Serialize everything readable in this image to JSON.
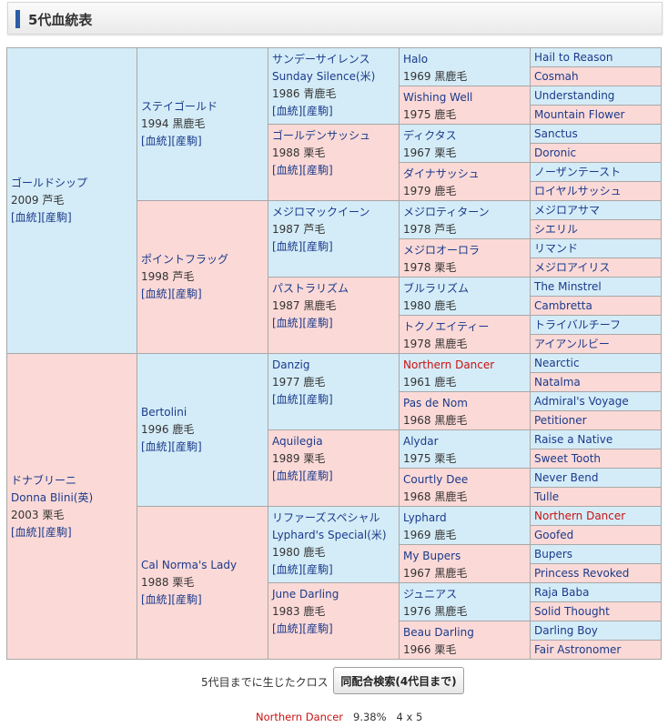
{
  "header": {
    "title": "5代血統表"
  },
  "pedigree": {
    "g1": [
      {
        "name": "ゴールドシップ",
        "info": "2009 芦毛",
        "links": "[血統][産駒]"
      },
      {
        "name": "ドナブリーニ",
        "name2": "Donna Blini(英)",
        "info": "2003 栗毛",
        "links": "[血統][産駒]"
      }
    ],
    "g2": [
      {
        "name": "ステイゴールド",
        "info": "1994 黒鹿毛",
        "links": "[血統][産駒]"
      },
      {
        "name": "ポイントフラッグ",
        "info": "1998 芦毛",
        "links": "[血統][産駒]"
      },
      {
        "name": "Bertolini",
        "info": "1996 鹿毛",
        "links": "[血統][産駒]"
      },
      {
        "name": "Cal Norma's Lady",
        "info": "1988 栗毛",
        "links": "[血統][産駒]"
      }
    ],
    "g3": [
      {
        "name": "サンデーサイレンス",
        "name2": "Sunday Silence(米)",
        "info": "1986 青鹿毛",
        "links": "[血統][産駒]"
      },
      {
        "name": "ゴールデンサッシュ",
        "info": "1988 栗毛",
        "links": "[血統][産駒]"
      },
      {
        "name": "メジロマックイーン",
        "info": "1987 芦毛",
        "links": "[血統][産駒]"
      },
      {
        "name": "パストラリズム",
        "info": "1987 黒鹿毛",
        "links": "[血統][産駒]"
      },
      {
        "name": "Danzig",
        "info": "1977 鹿毛",
        "links": "[血統][産駒]"
      },
      {
        "name": "Aquilegia",
        "info": "1989 栗毛",
        "links": "[血統][産駒]"
      },
      {
        "name": "リファーズスペシャル",
        "name2": "Lyphard's Special(米)",
        "info": "1980 鹿毛",
        "links": "[血統][産駒]"
      },
      {
        "name": "June Darling",
        "info": "1983 鹿毛",
        "links": "[血統][産駒]"
      }
    ],
    "g4": [
      {
        "name": "Halo",
        "info": "1969 黒鹿毛"
      },
      {
        "name": "Wishing Well",
        "info": "1975 鹿毛"
      },
      {
        "name": "ディクタス",
        "info": "1967 栗毛"
      },
      {
        "name": "ダイナサッシュ",
        "info": "1979 鹿毛"
      },
      {
        "name": "メジロティターン",
        "info": "1978 芦毛"
      },
      {
        "name": "メジロオーロラ",
        "info": "1978 栗毛"
      },
      {
        "name": "ブルラリズム",
        "info": "1980 鹿毛"
      },
      {
        "name": "トクノエイティー",
        "info": "1978 黒鹿毛"
      },
      {
        "name": "Northern Dancer",
        "info": "1961 鹿毛",
        "highlight": true
      },
      {
        "name": "Pas de Nom",
        "info": "1968 黒鹿毛"
      },
      {
        "name": "Alydar",
        "info": "1975 栗毛"
      },
      {
        "name": "Courtly Dee",
        "info": "1968 黒鹿毛"
      },
      {
        "name": "Lyphard",
        "info": "1969 鹿毛"
      },
      {
        "name": "My Bupers",
        "info": "1967 黒鹿毛"
      },
      {
        "name": "ジュニアス",
        "info": "1976 黒鹿毛"
      },
      {
        "name": "Beau Darling",
        "info": "1966 栗毛"
      }
    ],
    "g5": [
      {
        "name": "Hail to Reason"
      },
      {
        "name": "Cosmah"
      },
      {
        "name": "Understanding"
      },
      {
        "name": "Mountain Flower"
      },
      {
        "name": "Sanctus"
      },
      {
        "name": "Doronic"
      },
      {
        "name": "ノーザンテースト"
      },
      {
        "name": "ロイヤルサッシュ"
      },
      {
        "name": "メジロアサマ"
      },
      {
        "name": "シエリル"
      },
      {
        "name": "リマンド"
      },
      {
        "name": "メジロアイリス"
      },
      {
        "name": "The Minstrel"
      },
      {
        "name": "Cambretta"
      },
      {
        "name": "トライバルチーフ"
      },
      {
        "name": "アイアンルビー"
      },
      {
        "name": "Nearctic"
      },
      {
        "name": "Natalma"
      },
      {
        "name": "Admiral's Voyage"
      },
      {
        "name": "Petitioner"
      },
      {
        "name": "Raise a Native"
      },
      {
        "name": "Sweet Tooth"
      },
      {
        "name": "Never Bend"
      },
      {
        "name": "Tulle"
      },
      {
        "name": "Northern Dancer",
        "highlight": true
      },
      {
        "name": "Goofed"
      },
      {
        "name": "Bupers"
      },
      {
        "name": "Princess Revoked"
      },
      {
        "name": "Raja Baba"
      },
      {
        "name": "Solid Thought"
      },
      {
        "name": "Darling Boy"
      },
      {
        "name": "Fair Astronomer"
      }
    ]
  },
  "cross": {
    "label": "5代目までに生じたクロス",
    "button": "同配合検索(4代目まで)",
    "entries": [
      {
        "name": "Northern Dancer",
        "percent": "9.38%",
        "generations": "4 x 5"
      }
    ]
  }
}
